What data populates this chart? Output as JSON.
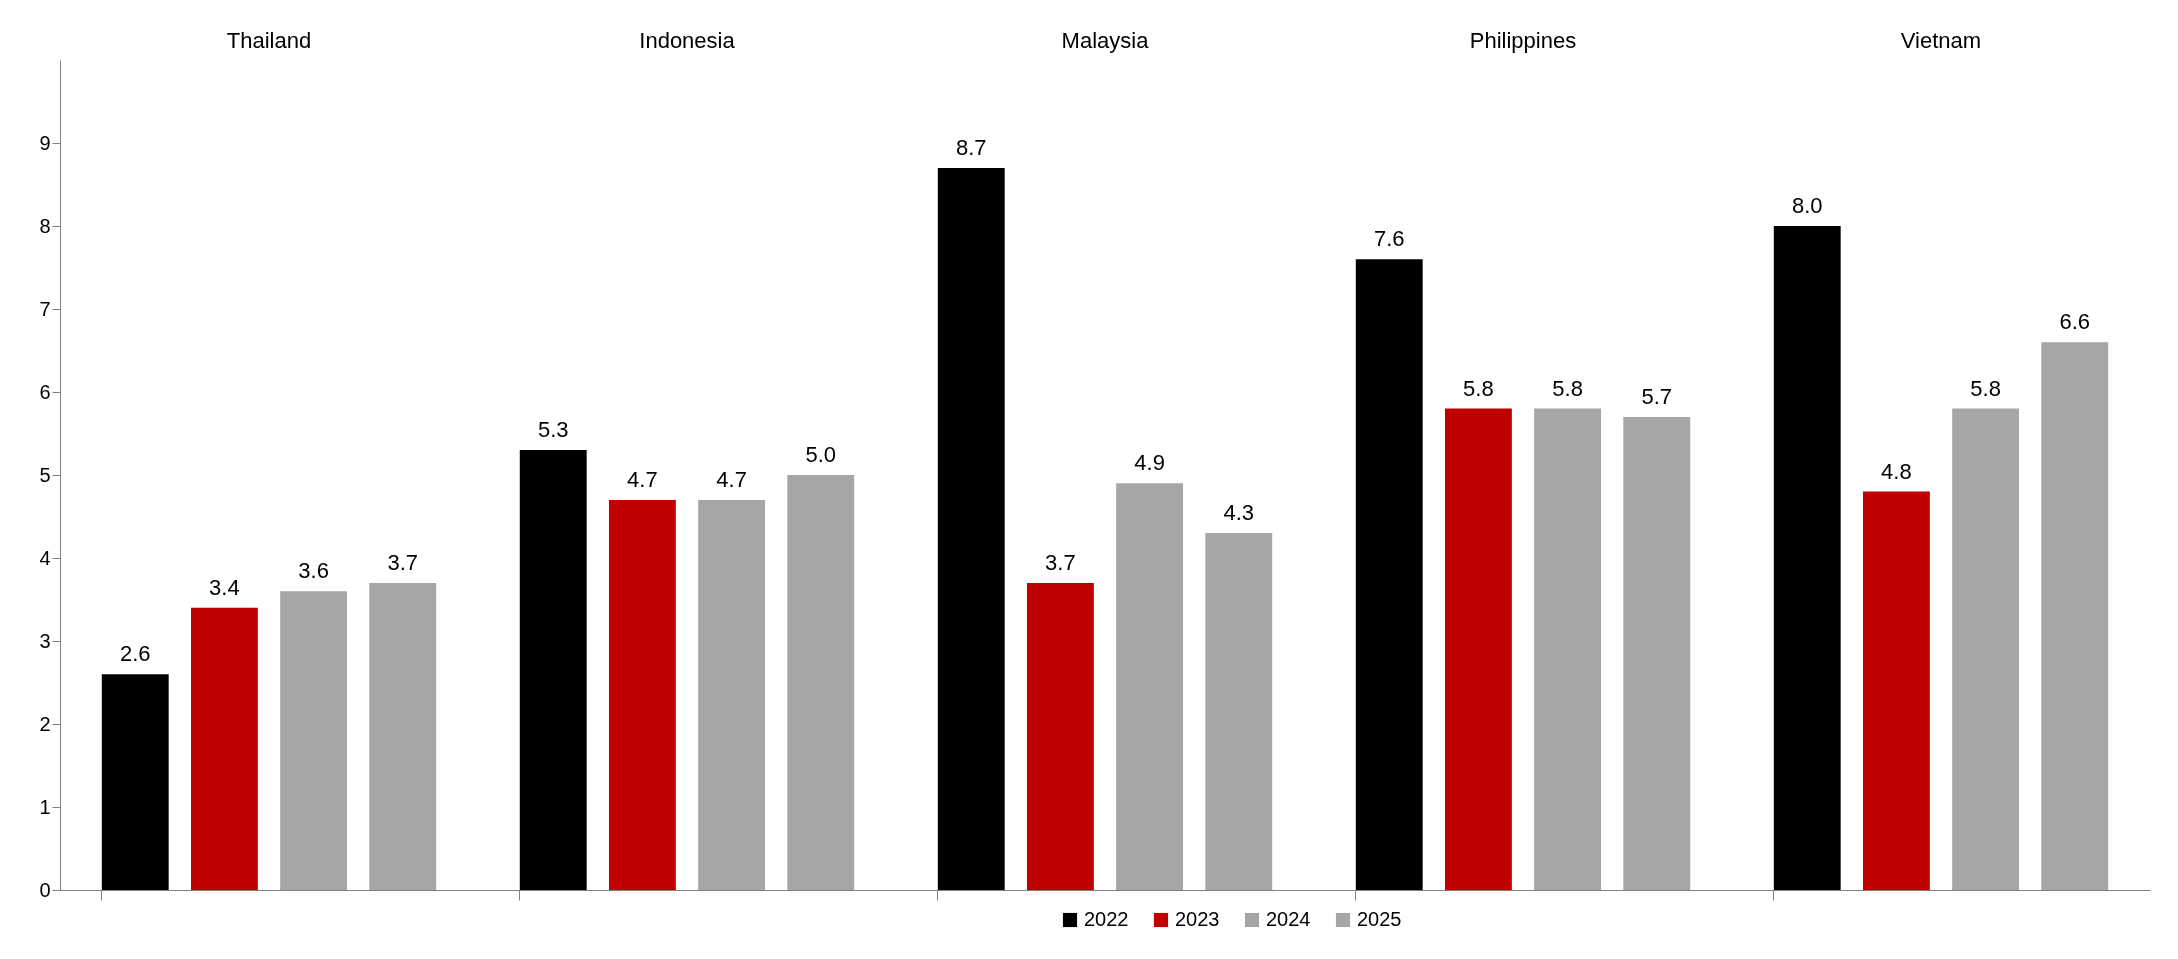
{
  "chart_data": {
    "type": "bar",
    "categories": [
      "Thailand",
      "Indonesia",
      "Malaysia",
      "Philippines",
      "Vietnam"
    ],
    "series": [
      {
        "name": "2022",
        "color": "#000000",
        "values": [
          2.6,
          5.3,
          8.7,
          7.6,
          8.0
        ],
        "value_labels": [
          "2.6",
          "5.3",
          "8.7",
          "7.6",
          "8.0"
        ]
      },
      {
        "name": "2023",
        "color": "#c00000",
        "values": [
          3.4,
          4.7,
          3.7,
          5.8,
          4.8
        ],
        "value_labels": [
          "3.4",
          "4.7",
          "3.7",
          "5.8",
          "4.8"
        ]
      },
      {
        "name": "2024",
        "color": "#a6a6a6",
        "values": [
          3.6,
          4.7,
          4.9,
          5.8,
          5.8
        ],
        "value_labels": [
          "3.6",
          "4.7",
          "4.9",
          "5.8",
          "5.8"
        ]
      },
      {
        "name": "2025",
        "color": "#a6a6a6",
        "values": [
          3.7,
          5.0,
          4.3,
          5.7,
          6.6
        ],
        "value_labels": [
          "3.7",
          "5.0",
          "4.3",
          "5.7",
          "6.6"
        ]
      }
    ],
    "ylim": [
      0,
      10
    ],
    "yticks": [
      0,
      1,
      2,
      3,
      4,
      5,
      6,
      7,
      8,
      9
    ],
    "grid": false,
    "legend": "bottom"
  }
}
